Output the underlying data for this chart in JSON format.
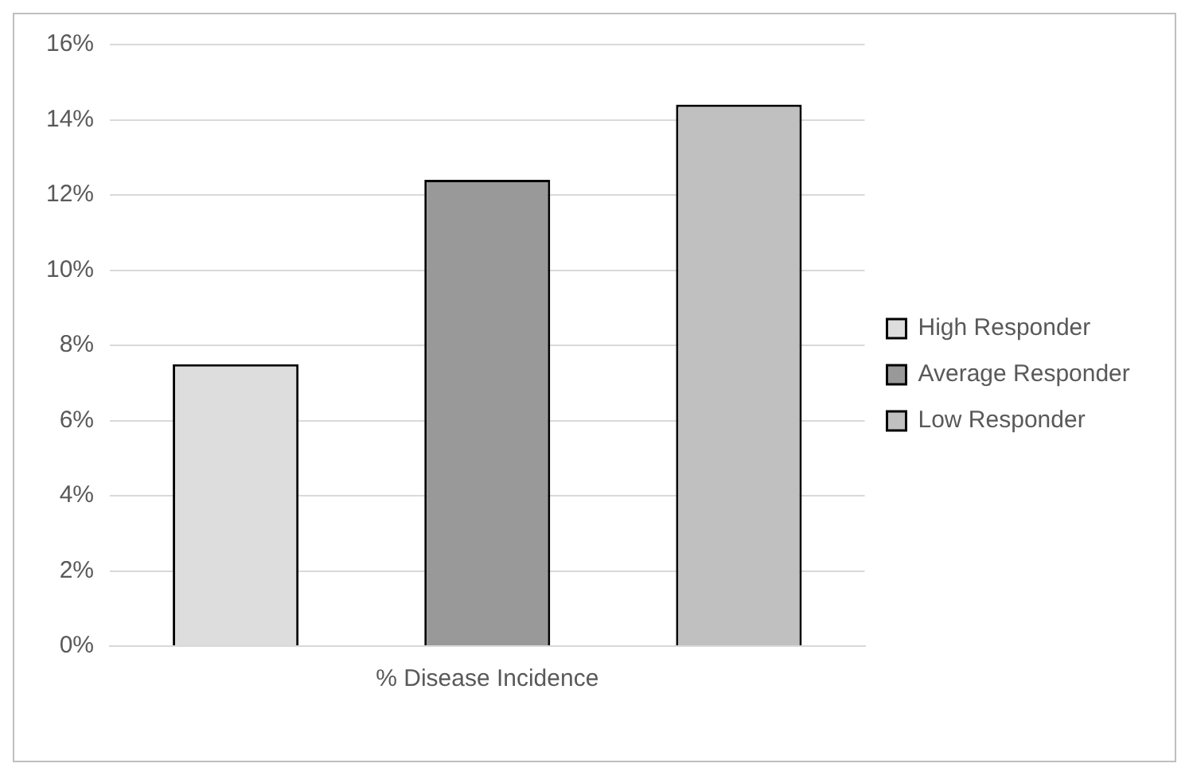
{
  "chart_data": {
    "type": "bar",
    "categories": [
      "% Disease Incidence"
    ],
    "series": [
      {
        "name": "High Responder",
        "color": "#dddddd",
        "values": [
          7.5
        ]
      },
      {
        "name": "Average Responder",
        "color": "#999999",
        "values": [
          12.4
        ]
      },
      {
        "name": "Low Responder",
        "color": "#c0c0c0",
        "values": [
          14.4
        ]
      }
    ],
    "ylim": [
      0,
      16
    ],
    "yticks": [
      {
        "value": 0,
        "label": "0%"
      },
      {
        "value": 2,
        "label": "2%"
      },
      {
        "value": 4,
        "label": "4%"
      },
      {
        "value": 6,
        "label": "6%"
      },
      {
        "value": 8,
        "label": "8%"
      },
      {
        "value": 10,
        "label": "10%"
      },
      {
        "value": 12,
        "label": "12%"
      },
      {
        "value": 14,
        "label": "14%"
      },
      {
        "value": 16,
        "label": "16%"
      }
    ],
    "grid": "y",
    "legend": "right"
  }
}
